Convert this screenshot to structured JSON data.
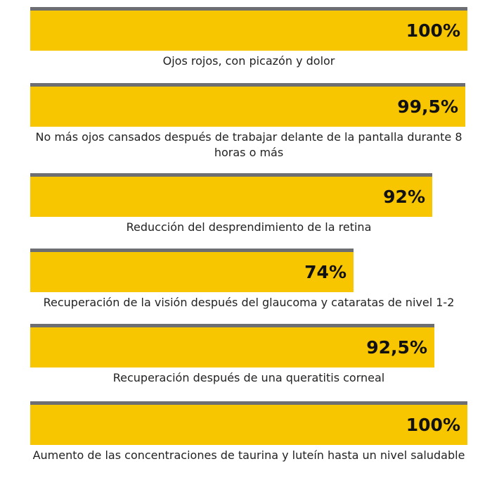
{
  "chart_data": {
    "type": "bar",
    "orientation": "horizontal",
    "xlim": [
      0,
      100
    ],
    "categories": [
      "Ojos rojos, con picazón y dolor",
      "No más ojos cansados después de trabajar delante de la pantalla durante 8 horas o más",
      "Reducción del desprendimiento de la retina",
      "Recuperación de la visión después del glaucoma y cataratas de nivel 1-2",
      "Recuperación después de una queratitis corneal",
      "Aumento de las concentraciones de taurina y luteín hasta un nivel saludable"
    ],
    "values": [
      100,
      99.5,
      92,
      74,
      92.5,
      100
    ],
    "value_labels": [
      "100%",
      "99,5%",
      "92%",
      "74%",
      "92,5%",
      "100%"
    ],
    "bar_color": "#f7c600",
    "track_color": "#6d6e71",
    "grid": false
  }
}
